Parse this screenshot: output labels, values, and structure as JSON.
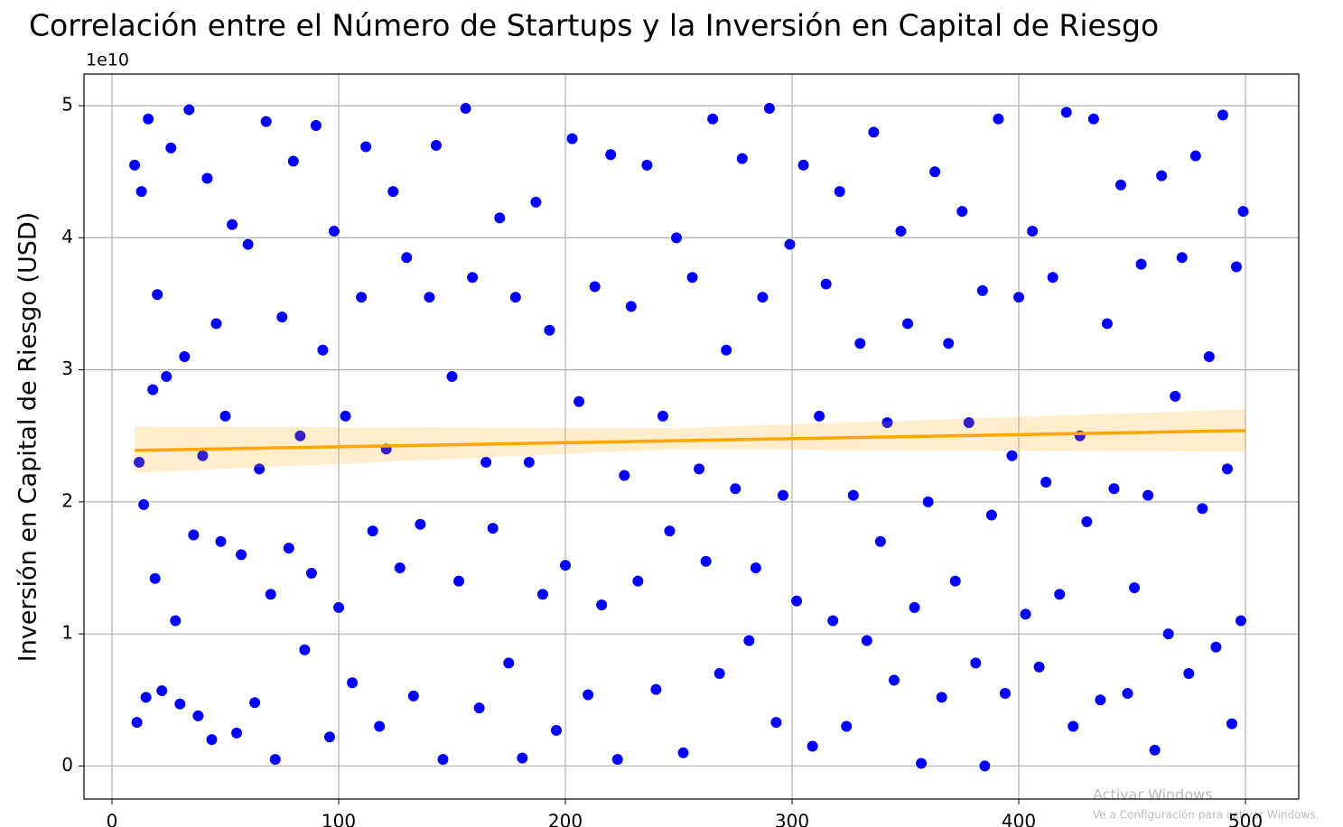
{
  "chart_data": {
    "type": "scatter",
    "title": "Correlación entre el Número de Startups y la Inversión en Capital de Riesgo",
    "y_label": "Inversión en Capital de Riesgo (USD)",
    "y_offset_label": "1e10",
    "xlim": [
      -12.35,
      523.5
    ],
    "ylim": [
      -0.25,
      5.24
    ],
    "xticks": [
      0,
      100,
      200,
      300,
      400,
      500
    ],
    "yticks": [
      0,
      1,
      2,
      3,
      4,
      5
    ],
    "grid": true,
    "series": [
      {
        "color": "#0000ff",
        "x": [
          10,
          11,
          12,
          13,
          14,
          15,
          16,
          18,
          19,
          20,
          22,
          24,
          26,
          28,
          30,
          32,
          34,
          36,
          38,
          40,
          42,
          44,
          46,
          48,
          50,
          53,
          55,
          57,
          60,
          63,
          65,
          68,
          70,
          72,
          75,
          78,
          80,
          83,
          85,
          88,
          90,
          93,
          96,
          98,
          100,
          103,
          106,
          110,
          112,
          115,
          118,
          121,
          124,
          127,
          130,
          133,
          136,
          140,
          143,
          146,
          150,
          153,
          156,
          159,
          162,
          165,
          168,
          171,
          175,
          178,
          181,
          184,
          187,
          190,
          193,
          196,
          200,
          203,
          206,
          210,
          213,
          216,
          220,
          223,
          226,
          229,
          232,
          236,
          240,
          243,
          246,
          249,
          252,
          256,
          259,
          262,
          265,
          268,
          271,
          275,
          278,
          281,
          284,
          287,
          290,
          293,
          296,
          299,
          302,
          305,
          309,
          312,
          315,
          318,
          321,
          324,
          327,
          330,
          333,
          336,
          339,
          342,
          345,
          348,
          351,
          354,
          357,
          360,
          363,
          366,
          369,
          372,
          375,
          378,
          381,
          384,
          385,
          388,
          391,
          394,
          397,
          400,
          403,
          406,
          409,
          412,
          415,
          418,
          421,
          424,
          427,
          430,
          433,
          436,
          439,
          442,
          445,
          448,
          451,
          454,
          457,
          460,
          463,
          466,
          469,
          472,
          475,
          478,
          481,
          484,
          487,
          490,
          492,
          494,
          496,
          498,
          499
        ],
        "values": [
          4.55,
          0.33,
          2.3,
          4.35,
          1.98,
          0.52,
          4.9,
          2.85,
          1.42,
          3.57,
          0.57,
          2.95,
          4.68,
          1.1,
          0.47,
          3.1,
          4.97,
          1.75,
          0.38,
          2.35,
          4.45,
          0.2,
          3.35,
          1.7,
          2.65,
          4.1,
          0.25,
          1.6,
          3.95,
          0.48,
          2.25,
          4.88,
          1.3,
          0.05,
          3.4,
          1.65,
          4.58,
          2.5,
          0.88,
          1.46,
          4.85,
          3.15,
          0.22,
          4.05,
          1.2,
          2.65,
          0.63,
          3.55,
          4.69,
          1.78,
          0.3,
          2.4,
          4.35,
          1.5,
          3.85,
          0.53,
          1.83,
          3.55,
          4.7,
          0.05,
          2.95,
          1.4,
          4.98,
          3.7,
          0.44,
          2.3,
          1.8,
          4.15,
          0.78,
          3.55,
          0.06,
          2.3,
          4.27,
          1.3,
          3.3,
          0.27,
          1.52,
          4.75,
          2.76,
          0.54,
          3.63,
          1.22,
          4.63,
          0.05,
          2.2,
          3.48,
          1.4,
          4.55,
          0.58,
          2.65,
          1.78,
          4.0,
          0.1,
          3.7,
          2.25,
          1.55,
          4.9,
          0.7,
          3.15,
          2.1,
          4.6,
          0.95,
          1.5,
          3.55,
          4.98,
          0.33,
          2.05,
          3.95,
          1.25,
          4.55,
          0.15,
          2.65,
          3.65,
          1.1,
          4.35,
          0.3,
          2.05,
          3.2,
          0.95,
          4.8,
          1.7,
          2.6,
          0.65,
          4.05,
          3.35,
          1.2,
          0.02,
          2.0,
          4.5,
          0.52,
          3.2,
          1.4,
          4.2,
          2.6,
          0.78,
          3.6,
          0.0,
          1.9,
          4.9,
          0.55,
          2.35,
          3.55,
          1.15,
          4.05,
          0.75,
          2.15,
          3.7,
          1.3,
          4.95,
          0.3,
          2.5,
          1.85,
          4.9,
          0.5,
          3.35,
          2.1,
          4.4,
          0.55,
          1.35,
          3.8,
          2.05,
          0.12,
          4.47,
          1.0,
          2.8,
          3.85,
          0.7,
          4.62,
          1.95,
          3.1,
          0.9,
          4.93,
          2.25,
          0.32,
          3.78,
          1.1,
          4.2
        ]
      }
    ],
    "regression": {
      "color": "#ffa500",
      "x": [
        10,
        500
      ],
      "values": [
        2.39,
        2.54
      ],
      "band_x": [
        10,
        250,
        500
      ],
      "band_lower": [
        2.22,
        2.4,
        2.38
      ],
      "band_upper": [
        2.57,
        2.56,
        2.7
      ]
    }
  },
  "watermark": [
    "Activar Windows",
    "Ve a Configuración para activar Windows."
  ]
}
